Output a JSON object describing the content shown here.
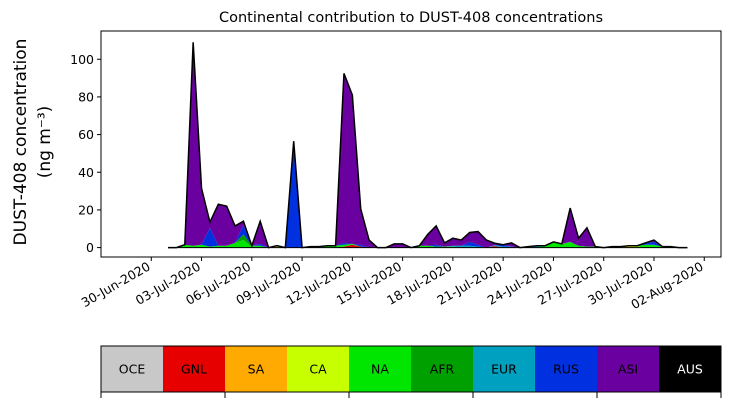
{
  "chart_data": {
    "type": "area",
    "stacked": true,
    "title": "Continental contribution to DUST-408 concentrations",
    "ylabel_line1": "DUST-408 concentration",
    "ylabel_line2": "(ng m⁻³)",
    "xlabel": "",
    "ylim": [
      -5,
      115
    ],
    "yticks": [
      0,
      20,
      40,
      60,
      80,
      100
    ],
    "xlim_days": [
      -3,
      34
    ],
    "x_tick_labels": [
      "30-Jun-2020",
      "03-Jul-2020",
      "06-Jul-2020",
      "09-Jul-2020",
      "12-Jul-2020",
      "15-Jul-2020",
      "18-Jul-2020",
      "21-Jul-2020",
      "24-Jul-2020",
      "27-Jul-2020",
      "30-Jul-2020",
      "02-Aug-2020"
    ],
    "x_tick_days": [
      0,
      3,
      6,
      9,
      12,
      15,
      18,
      21,
      24,
      27,
      30,
      33
    ],
    "x": [
      1.0,
      1.5,
      2.0,
      2.5,
      3.0,
      3.5,
      4.0,
      4.5,
      5.0,
      5.5,
      6.0,
      6.5,
      7.0,
      7.5,
      8.0,
      8.5,
      9.0,
      9.5,
      10.0,
      10.5,
      11.0,
      11.5,
      12.0,
      12.5,
      13.0,
      13.5,
      14.0,
      14.5,
      15.0,
      15.5,
      16.0,
      16.5,
      17.0,
      17.5,
      18.0,
      18.5,
      19.0,
      19.5,
      20.0,
      20.5,
      21.0,
      21.5,
      22.0,
      22.5,
      23.0,
      23.5,
      24.0,
      24.5,
      25.0,
      25.5,
      26.0,
      26.5,
      27.0,
      27.5,
      28.0,
      28.5,
      29.0,
      29.5,
      30.0,
      30.5,
      31.0,
      31.5,
      32.0
    ],
    "series": [
      {
        "name": "OCE",
        "color": "#c8c8c8",
        "values": [
          0,
          0,
          0,
          0,
          0,
          0,
          0,
          0,
          0,
          0,
          0,
          0,
          0,
          0,
          0,
          0,
          0,
          0,
          0,
          0,
          0,
          0,
          0,
          0,
          0,
          0,
          0,
          0,
          0,
          0,
          0,
          0,
          0,
          0,
          0,
          0,
          0,
          0,
          0,
          0,
          0,
          0,
          0,
          0,
          0,
          0,
          0,
          0,
          0,
          0,
          0,
          0,
          0,
          0,
          0,
          0,
          0,
          0,
          0,
          0,
          0,
          0,
          0
        ]
      },
      {
        "name": "GNL",
        "color": "#e60000",
        "values": [
          0,
          0,
          0,
          0,
          0,
          0,
          0,
          0,
          0,
          0,
          0,
          0,
          0,
          0,
          0,
          0,
          0,
          0,
          0,
          0,
          0,
          0.5,
          1.5,
          0.5,
          0,
          0,
          0,
          0,
          0,
          0,
          0,
          0,
          0,
          0,
          0,
          0,
          0,
          0,
          0,
          0.8,
          0,
          0,
          0,
          0,
          0,
          0,
          0,
          0,
          0,
          0,
          0,
          0,
          0,
          0,
          0,
          0,
          0,
          0,
          0,
          0,
          0,
          0,
          0
        ]
      },
      {
        "name": "SA",
        "color": "#ffaa00",
        "values": [
          0,
          0,
          0,
          0,
          0,
          0,
          0,
          0,
          0,
          0,
          0,
          0,
          0,
          0.5,
          0,
          0,
          0,
          0.5,
          0,
          0,
          0,
          0,
          0,
          0,
          0,
          0,
          0,
          0,
          0,
          0,
          0,
          0,
          0,
          0,
          0,
          0,
          0,
          0,
          0,
          0,
          0,
          0,
          0,
          0,
          0,
          0,
          0,
          0,
          0,
          0,
          0,
          0,
          0,
          0,
          0,
          0.5,
          0,
          0,
          0,
          0,
          0,
          0,
          0
        ]
      },
      {
        "name": "CA",
        "color": "#c8ff00",
        "values": [
          0,
          0,
          0,
          0,
          0,
          0,
          0,
          0,
          0,
          0,
          0,
          0,
          0,
          0,
          0,
          0,
          0,
          0,
          0,
          0,
          0,
          0,
          0,
          0,
          0,
          0,
          0,
          0,
          0,
          0,
          0,
          0,
          0,
          0,
          0,
          0,
          0,
          0,
          0,
          0,
          0,
          0,
          0,
          0,
          0,
          0,
          0,
          0,
          0,
          0,
          0,
          0,
          0,
          0,
          0,
          0.5,
          0.5,
          0,
          0,
          0,
          0,
          0,
          0
        ]
      },
      {
        "name": "NA",
        "color": "#00e600",
        "values": [
          0,
          0,
          1.5,
          1,
          1.5,
          0.5,
          1,
          1,
          2.5,
          4,
          0.5,
          1,
          0,
          0.5,
          0,
          0,
          0,
          0,
          0.5,
          1,
          1,
          1,
          0.5,
          0,
          0,
          0,
          0,
          0,
          0,
          0,
          1,
          1,
          0.5,
          0.5,
          0.5,
          0,
          0,
          0,
          0,
          0,
          0,
          0,
          0,
          0,
          0,
          1,
          3,
          2,
          3,
          1,
          0.5,
          0.5,
          0,
          0.5,
          0.5,
          0,
          0.5,
          1.5,
          1.5,
          0.5,
          0.5,
          0,
          0
        ]
      },
      {
        "name": "AFR",
        "color": "#00a000",
        "values": [
          0,
          0,
          0,
          0,
          0,
          0,
          0,
          0,
          0,
          3,
          0.5,
          0,
          0,
          0,
          0,
          0,
          0,
          0,
          0,
          0,
          0,
          0,
          0,
          0,
          0,
          0,
          0,
          0,
          0,
          0,
          0,
          0,
          0,
          0,
          0,
          0,
          0,
          0,
          0,
          0,
          0,
          0,
          0,
          0,
          0,
          0,
          0,
          0,
          0,
          0,
          0,
          0,
          0,
          0,
          0,
          0,
          0,
          0,
          0,
          0,
          0,
          0,
          0
        ]
      },
      {
        "name": "EUR",
        "color": "#00a0c0",
        "values": [
          0,
          0,
          0,
          0,
          0,
          0,
          0,
          0,
          0,
          0,
          0,
          0,
          0,
          0,
          0,
          0,
          0,
          0,
          0,
          0,
          0,
          0,
          0,
          0,
          0,
          0,
          0,
          0,
          0,
          0,
          0,
          0,
          0,
          0,
          0.5,
          1,
          1,
          0.5,
          0,
          0.5,
          0.5,
          0.5,
          0,
          0.5,
          1,
          0,
          0,
          0,
          0,
          0,
          0,
          0,
          0,
          0,
          0,
          0,
          0,
          0,
          0,
          0,
          0,
          0,
          0
        ]
      },
      {
        "name": "RUS",
        "color": "#0030e0",
        "values": [
          0,
          0,
          0,
          0,
          0,
          10,
          0,
          0,
          0,
          5,
          0,
          1,
          0,
          0,
          0,
          55,
          0,
          0,
          0,
          0,
          0,
          1,
          0,
          1,
          0,
          0,
          0,
          0,
          0,
          0,
          0,
          0,
          1,
          0,
          0,
          0,
          2,
          1,
          0,
          0,
          1,
          0,
          0,
          0,
          0,
          0,
          0,
          0,
          0,
          0,
          0,
          0,
          0,
          0,
          0,
          0,
          0,
          1,
          1.5,
          0,
          0,
          0,
          0
        ]
      },
      {
        "name": "ASI",
        "color": "#6a00a0",
        "values": [
          0,
          0,
          0,
          108,
          30,
          3,
          22,
          21,
          9,
          2,
          0,
          12,
          0,
          0,
          0,
          1.5,
          0,
          0,
          0,
          0,
          0,
          90,
          79,
          19,
          4,
          0,
          0,
          2,
          2,
          0,
          0,
          6,
          10,
          2,
          4,
          3,
          5,
          7,
          4,
          1,
          0,
          2,
          0,
          0,
          0,
          0,
          0,
          0,
          18,
          4,
          10,
          0,
          0,
          0,
          0,
          0,
          0,
          0,
          1,
          0,
          0,
          0,
          0
        ]
      },
      {
        "name": "AUS",
        "color": "#000000",
        "values": [
          0,
          0,
          0,
          0,
          0,
          0,
          0,
          0,
          0,
          0,
          0,
          0,
          0,
          0,
          0,
          0,
          0,
          0,
          0,
          0,
          0,
          0,
          0,
          0,
          0,
          0,
          0,
          0,
          0,
          0,
          0,
          0,
          0,
          0,
          0,
          0,
          0,
          0,
          0,
          0,
          0,
          0,
          0,
          0,
          0,
          0,
          0,
          0,
          0,
          0,
          0,
          0,
          0,
          0,
          0,
          0,
          0,
          0,
          0,
          0,
          0,
          0,
          0
        ]
      }
    ],
    "legend_position": "bottom"
  }
}
